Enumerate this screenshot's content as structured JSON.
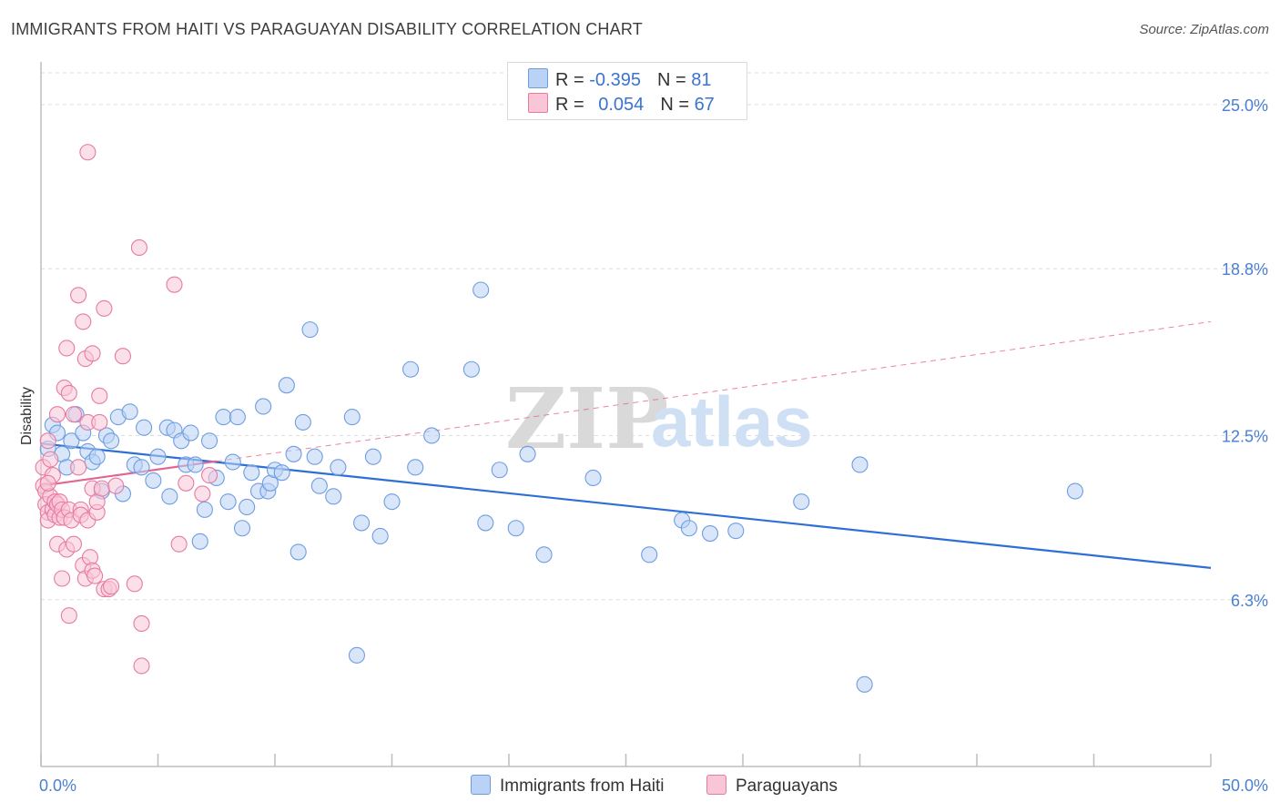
{
  "title": "IMMIGRANTS FROM HAITI VS PARAGUAYAN DISABILITY CORRELATION CHART",
  "source": "Source: ZipAtlas.com",
  "watermark": {
    "zip": "ZIP",
    "atlas": "atlas"
  },
  "legend": {
    "rows": [
      {
        "r_label": "R = ",
        "r_value": "-0.395",
        "n_label": "N = ",
        "n_value": "81",
        "color": "#6d9de0",
        "fill": "#b9d2f5"
      },
      {
        "r_label": "R = ",
        "r_value": "0.054",
        "n_label": "N = ",
        "n_value": "67",
        "color": "#e67aa2",
        "fill": "#f9c6d7"
      }
    ]
  },
  "bottom_legend": [
    {
      "label": "Immigrants from Haiti",
      "color": "#6d9de0",
      "fill": "#b9d2f5"
    },
    {
      "label": "Paraguayans",
      "color": "#e67aa2",
      "fill": "#f9c6d7"
    }
  ],
  "colors": {
    "haiti_line": "#2e6fd6",
    "para_line": "#e46592",
    "grid": "#dcdcdc",
    "axis_text": "#4a7fd4"
  },
  "chart_data": {
    "type": "scatter",
    "title": "IMMIGRANTS FROM HAITI VS PARAGUAYAN DISABILITY CORRELATION CHART",
    "xlabel": "",
    "ylabel": "Disability",
    "xlim": [
      0,
      50
    ],
    "ylim": [
      0,
      26.2
    ],
    "x_tick_labels": [
      "0.0%",
      "50.0%"
    ],
    "y_ticks": [
      6.3,
      12.5,
      18.8,
      25.0
    ],
    "y_tick_labels": [
      "6.3%",
      "12.5%",
      "18.8%",
      "25.0%"
    ],
    "grid": "horizontal dashed",
    "legend_position": "top-center",
    "series": [
      {
        "name": "Immigrants from Haiti",
        "trend": {
          "x": [
            0,
            50
          ],
          "y": [
            12.2,
            7.5
          ],
          "style": "solid"
        },
        "points": [
          [
            0.3,
            12.0
          ],
          [
            0.5,
            12.9
          ],
          [
            0.7,
            12.6
          ],
          [
            0.9,
            11.8
          ],
          [
            1.1,
            11.3
          ],
          [
            1.3,
            12.3
          ],
          [
            1.5,
            13.3
          ],
          [
            1.8,
            12.6
          ],
          [
            2.0,
            11.9
          ],
          [
            2.2,
            11.5
          ],
          [
            2.4,
            11.7
          ],
          [
            2.6,
            10.4
          ],
          [
            2.8,
            12.5
          ],
          [
            3.0,
            12.3
          ],
          [
            3.3,
            13.2
          ],
          [
            3.5,
            10.3
          ],
          [
            3.8,
            13.4
          ],
          [
            4.0,
            11.4
          ],
          [
            4.3,
            11.3
          ],
          [
            4.4,
            12.8
          ],
          [
            4.8,
            10.8
          ],
          [
            5.0,
            11.7
          ],
          [
            5.4,
            12.8
          ],
          [
            5.5,
            10.2
          ],
          [
            5.7,
            12.7
          ],
          [
            6.0,
            12.3
          ],
          [
            6.2,
            11.4
          ],
          [
            6.4,
            12.6
          ],
          [
            6.6,
            11.4
          ],
          [
            6.8,
            8.5
          ],
          [
            7.0,
            9.7
          ],
          [
            7.2,
            12.3
          ],
          [
            7.5,
            10.9
          ],
          [
            7.8,
            13.2
          ],
          [
            8.0,
            10.0
          ],
          [
            8.2,
            11.5
          ],
          [
            8.4,
            13.2
          ],
          [
            8.6,
            9.0
          ],
          [
            8.8,
            9.8
          ],
          [
            9.0,
            11.1
          ],
          [
            9.3,
            10.4
          ],
          [
            9.5,
            13.6
          ],
          [
            9.7,
            10.4
          ],
          [
            9.8,
            10.7
          ],
          [
            10.0,
            11.2
          ],
          [
            10.3,
            11.1
          ],
          [
            10.5,
            14.4
          ],
          [
            10.8,
            11.8
          ],
          [
            11.0,
            8.1
          ],
          [
            11.2,
            13.0
          ],
          [
            11.5,
            16.5
          ],
          [
            11.7,
            11.7
          ],
          [
            11.9,
            10.6
          ],
          [
            12.5,
            10.2
          ],
          [
            12.7,
            11.3
          ],
          [
            13.3,
            13.2
          ],
          [
            13.5,
            4.2
          ],
          [
            13.7,
            9.2
          ],
          [
            14.2,
            11.7
          ],
          [
            14.5,
            8.7
          ],
          [
            15.0,
            10.0
          ],
          [
            15.8,
            15.0
          ],
          [
            16.0,
            11.3
          ],
          [
            16.7,
            12.5
          ],
          [
            18.4,
            15.0
          ],
          [
            18.8,
            18.0
          ],
          [
            19.0,
            9.2
          ],
          [
            19.6,
            11.2
          ],
          [
            20.3,
            9.0
          ],
          [
            20.8,
            11.8
          ],
          [
            21.5,
            8.0
          ],
          [
            23.6,
            10.9
          ],
          [
            26.0,
            8.0
          ],
          [
            27.4,
            9.3
          ],
          [
            27.7,
            9.0
          ],
          [
            28.6,
            8.8
          ],
          [
            29.7,
            8.9
          ],
          [
            32.5,
            10.0
          ],
          [
            35.2,
            3.1
          ],
          [
            44.2,
            10.4
          ],
          [
            35.0,
            11.4
          ]
        ]
      },
      {
        "name": "Paraguayans",
        "trend": {
          "x": [
            0,
            50
          ],
          "y": [
            10.6,
            16.8
          ],
          "style": "solid then dashed"
        },
        "points": [
          [
            0.1,
            11.3
          ],
          [
            0.1,
            10.6
          ],
          [
            0.2,
            10.4
          ],
          [
            0.2,
            9.9
          ],
          [
            0.3,
            9.6
          ],
          [
            0.3,
            9.3
          ],
          [
            0.3,
            12.3
          ],
          [
            0.4,
            11.6
          ],
          [
            0.4,
            10.2
          ],
          [
            0.5,
            11.0
          ],
          [
            0.5,
            9.7
          ],
          [
            0.6,
            10.0
          ],
          [
            0.6,
            9.5
          ],
          [
            0.7,
            13.3
          ],
          [
            0.7,
            9.9
          ],
          [
            0.7,
            8.4
          ],
          [
            0.8,
            10.0
          ],
          [
            0.8,
            9.4
          ],
          [
            0.9,
            9.7
          ],
          [
            0.9,
            7.1
          ],
          [
            1.0,
            14.3
          ],
          [
            1.0,
            9.4
          ],
          [
            1.1,
            15.8
          ],
          [
            1.1,
            8.2
          ],
          [
            1.2,
            14.1
          ],
          [
            1.2,
            9.7
          ],
          [
            1.2,
            5.7
          ],
          [
            1.3,
            9.3
          ],
          [
            1.4,
            8.4
          ],
          [
            1.4,
            13.3
          ],
          [
            1.6,
            17.8
          ],
          [
            1.6,
            11.3
          ],
          [
            1.7,
            9.7
          ],
          [
            1.7,
            9.5
          ],
          [
            1.8,
            16.8
          ],
          [
            1.8,
            7.6
          ],
          [
            1.9,
            15.4
          ],
          [
            1.9,
            7.1
          ],
          [
            2.0,
            13.0
          ],
          [
            2.0,
            9.3
          ],
          [
            2.1,
            7.9
          ],
          [
            2.2,
            15.6
          ],
          [
            2.2,
            7.4
          ],
          [
            2.2,
            10.5
          ],
          [
            2.3,
            7.2
          ],
          [
            2.4,
            9.6
          ],
          [
            2.4,
            10.0
          ],
          [
            2.5,
            13.0
          ],
          [
            2.5,
            14.0
          ],
          [
            2.6,
            10.5
          ],
          [
            2.7,
            17.3
          ],
          [
            2.7,
            6.7
          ],
          [
            2.9,
            6.7
          ],
          [
            3.0,
            6.8
          ],
          [
            3.2,
            10.6
          ],
          [
            3.5,
            15.5
          ],
          [
            4.0,
            6.9
          ],
          [
            4.2,
            19.6
          ],
          [
            4.3,
            5.4
          ],
          [
            4.3,
            3.8
          ],
          [
            5.7,
            18.2
          ],
          [
            5.9,
            8.4
          ],
          [
            6.2,
            10.7
          ],
          [
            6.9,
            10.3
          ],
          [
            7.2,
            11.0
          ],
          [
            2.0,
            23.2
          ],
          [
            0.3,
            10.7
          ]
        ]
      }
    ]
  }
}
